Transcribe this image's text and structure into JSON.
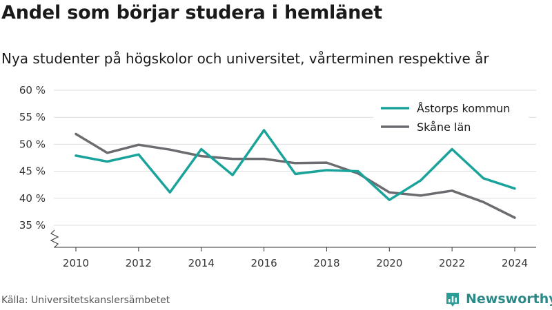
{
  "header": {
    "title": "Andel som börjar studera i hemlänet",
    "subtitle": "Nya studenter på högskolor och universitet, vårterminen respektive år"
  },
  "footer": {
    "source": "Källa: Universitetskanslersämbetet",
    "brand": "Newsworthy",
    "brand_color": "#2a9d96"
  },
  "chart_data": {
    "type": "line",
    "title": "Andel som börjar studera i hemlänet",
    "subtitle": "Nya studenter på högskolor och universitet, vårterminen respektive år",
    "xlabel": "",
    "ylabel": "",
    "x": [
      2010,
      2011,
      2012,
      2013,
      2014,
      2015,
      2016,
      2017,
      2018,
      2019,
      2020,
      2021,
      2022,
      2023,
      2024
    ],
    "xticks": [
      "2010",
      "2012",
      "2014",
      "2016",
      "2018",
      "2020",
      "2022",
      "2024"
    ],
    "yticks": [
      "35 %",
      "40 %",
      "45 %",
      "50 %",
      "55 %",
      "60 %"
    ],
    "ylim": [
      35,
      60
    ],
    "y_axis_break": true,
    "grid": true,
    "legend_position": "top-right",
    "series": [
      {
        "name": "Åstorps kommun",
        "color": "#1aa39a",
        "values": [
          47.9,
          46.8,
          48.1,
          41.1,
          49.1,
          44.3,
          52.6,
          44.5,
          45.2,
          45.0,
          39.7,
          43.3,
          49.1,
          43.7,
          41.8
        ]
      },
      {
        "name": "Skåne län",
        "color": "#6b6b70",
        "values": [
          51.9,
          48.4,
          49.9,
          49.0,
          47.8,
          47.3,
          47.3,
          46.5,
          46.6,
          44.6,
          41.1,
          40.5,
          41.4,
          39.3,
          36.4
        ]
      }
    ]
  }
}
